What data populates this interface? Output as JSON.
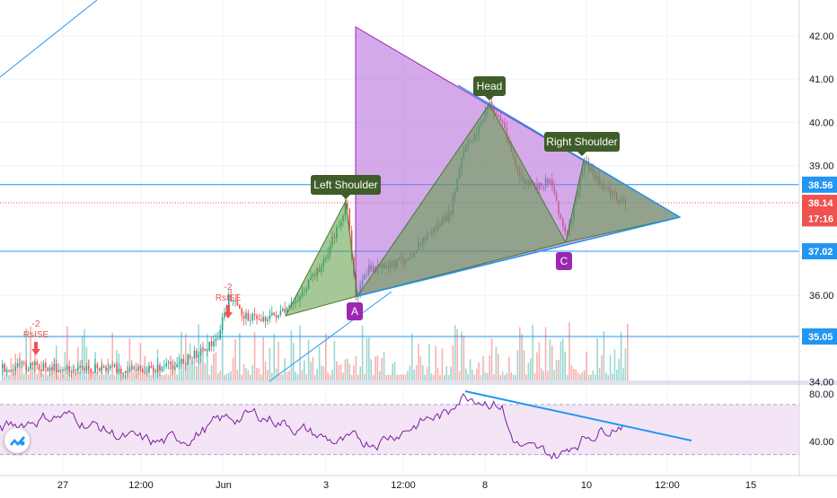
{
  "chart_data": {
    "type": "candlestick",
    "price_axis": {
      "ticks": [
        "42.00",
        "41.00",
        "40.00",
        "39.00",
        "36.00",
        "35.00",
        "34.00"
      ],
      "tick_values": [
        42,
        41,
        40,
        39,
        36,
        35,
        34
      ]
    },
    "time_axis": {
      "ticks": [
        "27",
        "12:00",
        "Jun",
        "3",
        "12:00",
        "8",
        "10",
        "12:00",
        "15"
      ]
    },
    "price_labels": [
      {
        "text": "38.56",
        "value": 38.56,
        "style": "level"
      },
      {
        "text": "38.14",
        "value": 38.14,
        "style": "current"
      },
      {
        "text": "17:16",
        "value": 37.78,
        "style": "countdown"
      },
      {
        "text": "37.02",
        "value": 37.02,
        "style": "level"
      },
      {
        "text": "35.05",
        "value": 35.05,
        "style": "level"
      }
    ],
    "horizontal_levels": [
      38.56,
      37.02,
      35.05
    ],
    "current_price": 38.14,
    "pattern": {
      "name": "Head and Shoulders",
      "labels": [
        "Left Shoulder",
        "Head",
        "Right Shoulder"
      ],
      "points": [
        "A",
        "C"
      ]
    },
    "signals": [
      {
        "value": "-2",
        "label": "RsISE"
      },
      {
        "value": "-2",
        "label": "RsISE"
      }
    ],
    "rsi": {
      "ticks": [
        "80.00",
        "40.00"
      ],
      "tick_values": [
        80,
        40
      ]
    },
    "colors": {
      "up": "#26a69a",
      "down": "#ef5350",
      "level_line": "#2196f3",
      "current_line": "#ef5350",
      "triangle_fill": "#b063d9",
      "pattern_fill": "#5b9c3f",
      "label_bg": "#3f5d2a",
      "point_bg": "#9c27b0",
      "rsi_line": "#7b1fa2",
      "rsi_band": "#f3e5f5",
      "trend_line": "#2196f3"
    }
  }
}
